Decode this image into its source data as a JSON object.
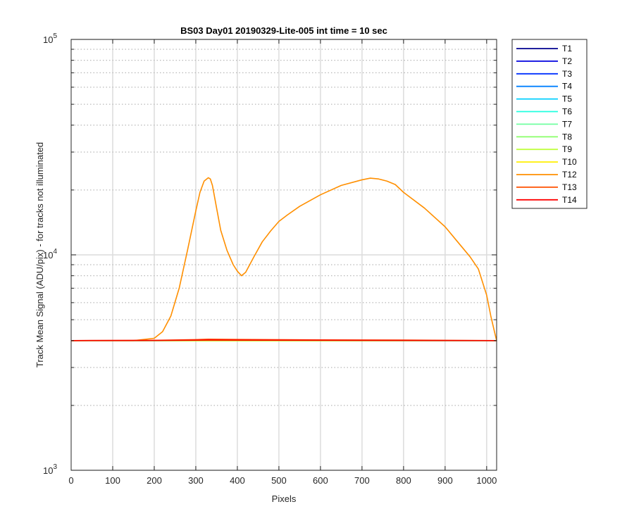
{
  "chart_data": {
    "type": "line",
    "title": "BS03 Day01 20190329-Lite-005 int time = 10 sec",
    "xlabel": "Pixels",
    "ylabel": "Track Mean Signal (ADU/pix) - for tracks not illuminated",
    "xlim": [
      0,
      1024
    ],
    "ylim": [
      1000,
      100000
    ],
    "y_scale": "log",
    "grid": true,
    "legend_position": "outside-top-right",
    "x_ticks": [
      0,
      100,
      200,
      300,
      400,
      500,
      600,
      700,
      800,
      900,
      1000
    ],
    "y_ticks": [
      {
        "value": 1000,
        "base": "10",
        "exp": "3"
      },
      {
        "value": 10000,
        "base": "10",
        "exp": "4"
      },
      {
        "value": 100000,
        "base": "10",
        "exp": "5"
      }
    ],
    "series": [
      {
        "name": "T1",
        "color": "#00008f",
        "x": [
          0,
          1024
        ],
        "y": [
          4000,
          4000
        ]
      },
      {
        "name": "T2",
        "color": "#0000df",
        "x": [
          0,
          1024
        ],
        "y": [
          4000,
          4000
        ]
      },
      {
        "name": "T3",
        "color": "#0030ff",
        "x": [
          0,
          1024
        ],
        "y": [
          4000,
          4000
        ]
      },
      {
        "name": "T4",
        "color": "#0080ff",
        "x": [
          0,
          1024
        ],
        "y": [
          4000,
          4000
        ]
      },
      {
        "name": "T5",
        "color": "#00cfff",
        "x": [
          0,
          1024
        ],
        "y": [
          4000,
          4000
        ]
      },
      {
        "name": "T6",
        "color": "#20ffdf",
        "x": [
          0,
          1024
        ],
        "y": [
          4000,
          4000
        ]
      },
      {
        "name": "T7",
        "color": "#70ffa0",
        "x": [
          0,
          1024
        ],
        "y": [
          4000,
          4000
        ]
      },
      {
        "name": "T8",
        "color": "#90ff70",
        "x": [
          0,
          1024
        ],
        "y": [
          4000,
          4000
        ]
      },
      {
        "name": "T9",
        "color": "#c0ff40",
        "x": [
          0,
          1024
        ],
        "y": [
          4000,
          4000
        ]
      },
      {
        "name": "T10",
        "color": "#ffef00",
        "x": [
          0,
          1024
        ],
        "y": [
          4000,
          4000
        ]
      },
      {
        "name": "T12",
        "color": "#ff8f00",
        "x": [
          0,
          150,
          200,
          220,
          240,
          260,
          280,
          300,
          310,
          320,
          330,
          335,
          340,
          350,
          360,
          375,
          390,
          400,
          410,
          420,
          440,
          460,
          480,
          500,
          520,
          550,
          600,
          650,
          700,
          720,
          740,
          760,
          780,
          800,
          850,
          900,
          930,
          960,
          980,
          1000,
          1010,
          1020,
          1024
        ],
        "y": [
          4000,
          4000,
          4100,
          4400,
          5200,
          7000,
          10500,
          16000,
          19500,
          22000,
          22800,
          22500,
          21000,
          16500,
          13000,
          10500,
          9000,
          8400,
          8000,
          8300,
          9800,
          11500,
          12900,
          14300,
          15300,
          16800,
          19000,
          21000,
          22300,
          22700,
          22500,
          22000,
          21200,
          19500,
          16500,
          13500,
          11500,
          9800,
          8600,
          6500,
          5200,
          4300,
          4000
        ]
      },
      {
        "name": "T13",
        "color": "#ff5000",
        "x": [
          0,
          200,
          300,
          330,
          400,
          600,
          800,
          1024
        ],
        "y": [
          4000,
          4010,
          4040,
          4060,
          4050,
          4030,
          4020,
          4000
        ]
      },
      {
        "name": "T14",
        "color": "#ff0000",
        "x": [
          0,
          200,
          330,
          600,
          800,
          1024
        ],
        "y": [
          4000,
          4005,
          4020,
          4015,
          4005,
          4000
        ]
      }
    ]
  }
}
